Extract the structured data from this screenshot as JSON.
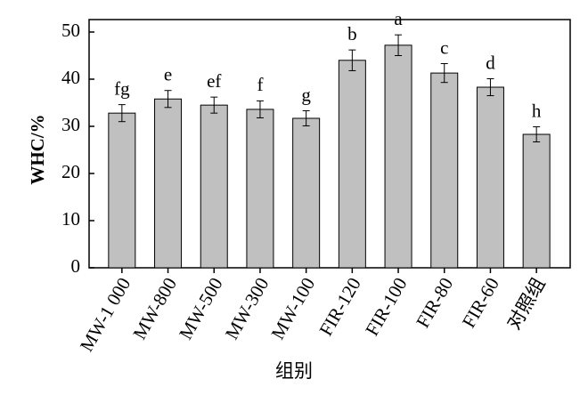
{
  "chart_data": {
    "type": "bar",
    "x_label": "组别",
    "y_label": "WHC/%",
    "categories": [
      "MW-1 000",
      "MW-800",
      "MW-500",
      "MW-300",
      "MW-100",
      "FIR-120",
      "FIR-100",
      "FIR-80",
      "FIR-60",
      "对照组"
    ],
    "values": [
      32.8,
      35.8,
      34.5,
      33.6,
      31.7,
      44.0,
      47.2,
      41.3,
      38.3,
      28.3
    ],
    "errors": [
      1.8,
      1.8,
      1.7,
      1.8,
      1.6,
      2.2,
      2.2,
      2.0,
      1.8,
      1.6
    ],
    "annotations": [
      "fg",
      "e",
      "ef",
      "f",
      "g",
      "b",
      "a",
      "c",
      "d",
      "h"
    ],
    "color": "#c0c0c0",
    "ylim": [
      0,
      50
    ],
    "yticks": [
      0,
      10,
      20,
      30,
      40,
      50
    ],
    "grid": false
  }
}
